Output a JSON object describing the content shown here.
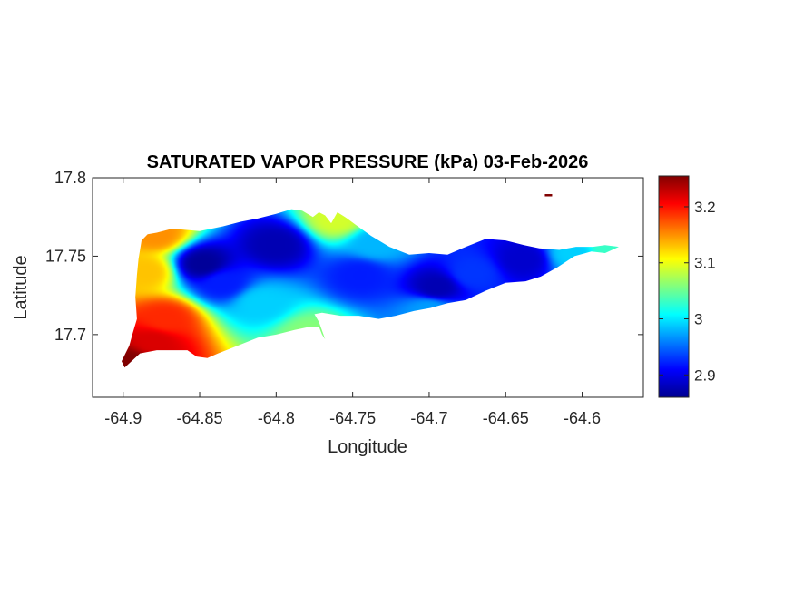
{
  "chart_data": {
    "type": "heatmap",
    "title": "SATURATED VAPOR PRESSURE (kPa) 03-Feb-2026",
    "xlabel": "Longitude",
    "ylabel": "Latitude",
    "xlim": [
      -64.92,
      -64.56
    ],
    "ylim": [
      17.66,
      17.8
    ],
    "x_ticks": [
      -64.9,
      -64.85,
      -64.8,
      -64.75,
      -64.7,
      -64.65,
      -64.6
    ],
    "x_tick_labels": [
      "-64.9",
      "-64.85",
      "-64.8",
      "-64.75",
      "-64.7",
      "-64.65",
      "-64.6"
    ],
    "y_ticks": [
      17.7,
      17.75,
      17.8
    ],
    "y_tick_labels": [
      "17.7",
      "17.75",
      "17.8"
    ],
    "colormap": "jet",
    "clim": [
      2.86,
      3.255
    ],
    "colorbar_ticks": [
      2.9,
      3.0,
      3.1,
      3.2
    ],
    "colorbar_tick_labels": [
      "2.9",
      "3",
      "3.1",
      "3.2"
    ],
    "colorbar_position": "right",
    "grid": false,
    "island_outline": [
      [
        -64.899,
        17.679
      ],
      [
        -64.889,
        17.688
      ],
      [
        -64.878,
        17.69
      ],
      [
        -64.866,
        17.69
      ],
      [
        -64.858,
        17.69
      ],
      [
        -64.852,
        17.686
      ],
      [
        -64.845,
        17.685
      ],
      [
        -64.838,
        17.688
      ],
      [
        -64.825,
        17.693
      ],
      [
        -64.812,
        17.698
      ],
      [
        -64.8,
        17.7
      ],
      [
        -64.788,
        17.703
      ],
      [
        -64.778,
        17.705
      ],
      [
        -64.772,
        17.705
      ],
      [
        -64.77,
        17.7
      ],
      [
        -64.768,
        17.697
      ],
      [
        -64.772,
        17.708
      ],
      [
        -64.775,
        17.713
      ],
      [
        -64.77,
        17.714
      ],
      [
        -64.758,
        17.712
      ],
      [
        -64.746,
        17.712
      ],
      [
        -64.733,
        17.71
      ],
      [
        -64.722,
        17.712
      ],
      [
        -64.71,
        17.715
      ],
      [
        -64.699,
        17.717
      ],
      [
        -64.688,
        17.72
      ],
      [
        -64.676,
        17.722
      ],
      [
        -64.663,
        17.728
      ],
      [
        -64.65,
        17.733
      ],
      [
        -64.637,
        17.734
      ],
      [
        -64.627,
        17.737
      ],
      [
        -64.616,
        17.743
      ],
      [
        -64.605,
        17.75
      ],
      [
        -64.594,
        17.753
      ],
      [
        -64.585,
        17.752
      ],
      [
        -64.576,
        17.756
      ],
      [
        -64.585,
        17.757
      ],
      [
        -64.593,
        17.756
      ],
      [
        -64.604,
        17.756
      ],
      [
        -64.615,
        17.754
      ],
      [
        -64.628,
        17.755
      ],
      [
        -64.638,
        17.757
      ],
      [
        -64.65,
        17.76
      ],
      [
        -64.663,
        17.761
      ],
      [
        -64.676,
        17.756
      ],
      [
        -64.688,
        17.751
      ],
      [
        -64.7,
        17.752
      ],
      [
        -64.713,
        17.751
      ],
      [
        -64.726,
        17.756
      ],
      [
        -64.738,
        17.763
      ],
      [
        -64.748,
        17.77
      ],
      [
        -64.755,
        17.775
      ],
      [
        -64.76,
        17.778
      ],
      [
        -64.764,
        17.771
      ],
      [
        -64.768,
        17.776
      ],
      [
        -64.772,
        17.778
      ],
      [
        -64.776,
        17.775
      ],
      [
        -64.783,
        17.779
      ],
      [
        -64.79,
        17.78
      ],
      [
        -64.8,
        17.777
      ],
      [
        -64.812,
        17.774
      ],
      [
        -64.823,
        17.772
      ],
      [
        -64.835,
        17.769
      ],
      [
        -64.85,
        17.766
      ],
      [
        -64.862,
        17.767
      ],
      [
        -64.87,
        17.767
      ],
      [
        -64.878,
        17.765
      ],
      [
        -64.884,
        17.764
      ],
      [
        -64.888,
        17.76
      ],
      [
        -64.89,
        17.748
      ],
      [
        -64.891,
        17.738
      ],
      [
        -64.892,
        17.724
      ],
      [
        -64.891,
        17.71
      ],
      [
        -64.894,
        17.7
      ],
      [
        -64.896,
        17.693
      ],
      [
        -64.901,
        17.683
      ]
    ],
    "islet": {
      "lon": -64.622,
      "lat": 17.789
    },
    "field_centers": [
      {
        "lon": -64.895,
        "lat": 17.682,
        "value": 3.255
      },
      {
        "lon": -64.88,
        "lat": 17.695,
        "value": 3.22
      },
      {
        "lon": -64.872,
        "lat": 17.71,
        "value": 3.19
      },
      {
        "lon": -64.885,
        "lat": 17.74,
        "value": 3.13
      },
      {
        "lon": -64.878,
        "lat": 17.764,
        "value": 3.15
      },
      {
        "lon": -64.848,
        "lat": 17.745,
        "value": 2.87
      },
      {
        "lon": -64.835,
        "lat": 17.733,
        "value": 2.92
      },
      {
        "lon": -64.8,
        "lat": 17.757,
        "value": 2.88
      },
      {
        "lon": -64.81,
        "lat": 17.72,
        "value": 2.99
      },
      {
        "lon": -64.778,
        "lat": 17.7,
        "value": 3.06
      },
      {
        "lon": -64.76,
        "lat": 17.774,
        "value": 3.09
      },
      {
        "lon": -64.745,
        "lat": 17.738,
        "value": 2.92
      },
      {
        "lon": -64.695,
        "lat": 17.73,
        "value": 2.88
      },
      {
        "lon": -64.672,
        "lat": 17.739,
        "value": 2.93
      },
      {
        "lon": -64.638,
        "lat": 17.748,
        "value": 2.89
      },
      {
        "lon": -64.606,
        "lat": 17.752,
        "value": 2.99
      },
      {
        "lon": -64.582,
        "lat": 17.755,
        "value": 3.03
      },
      {
        "lon": -64.7,
        "lat": 17.716,
        "value": 2.97
      },
      {
        "lon": -64.735,
        "lat": 17.758,
        "value": 2.98
      }
    ]
  }
}
